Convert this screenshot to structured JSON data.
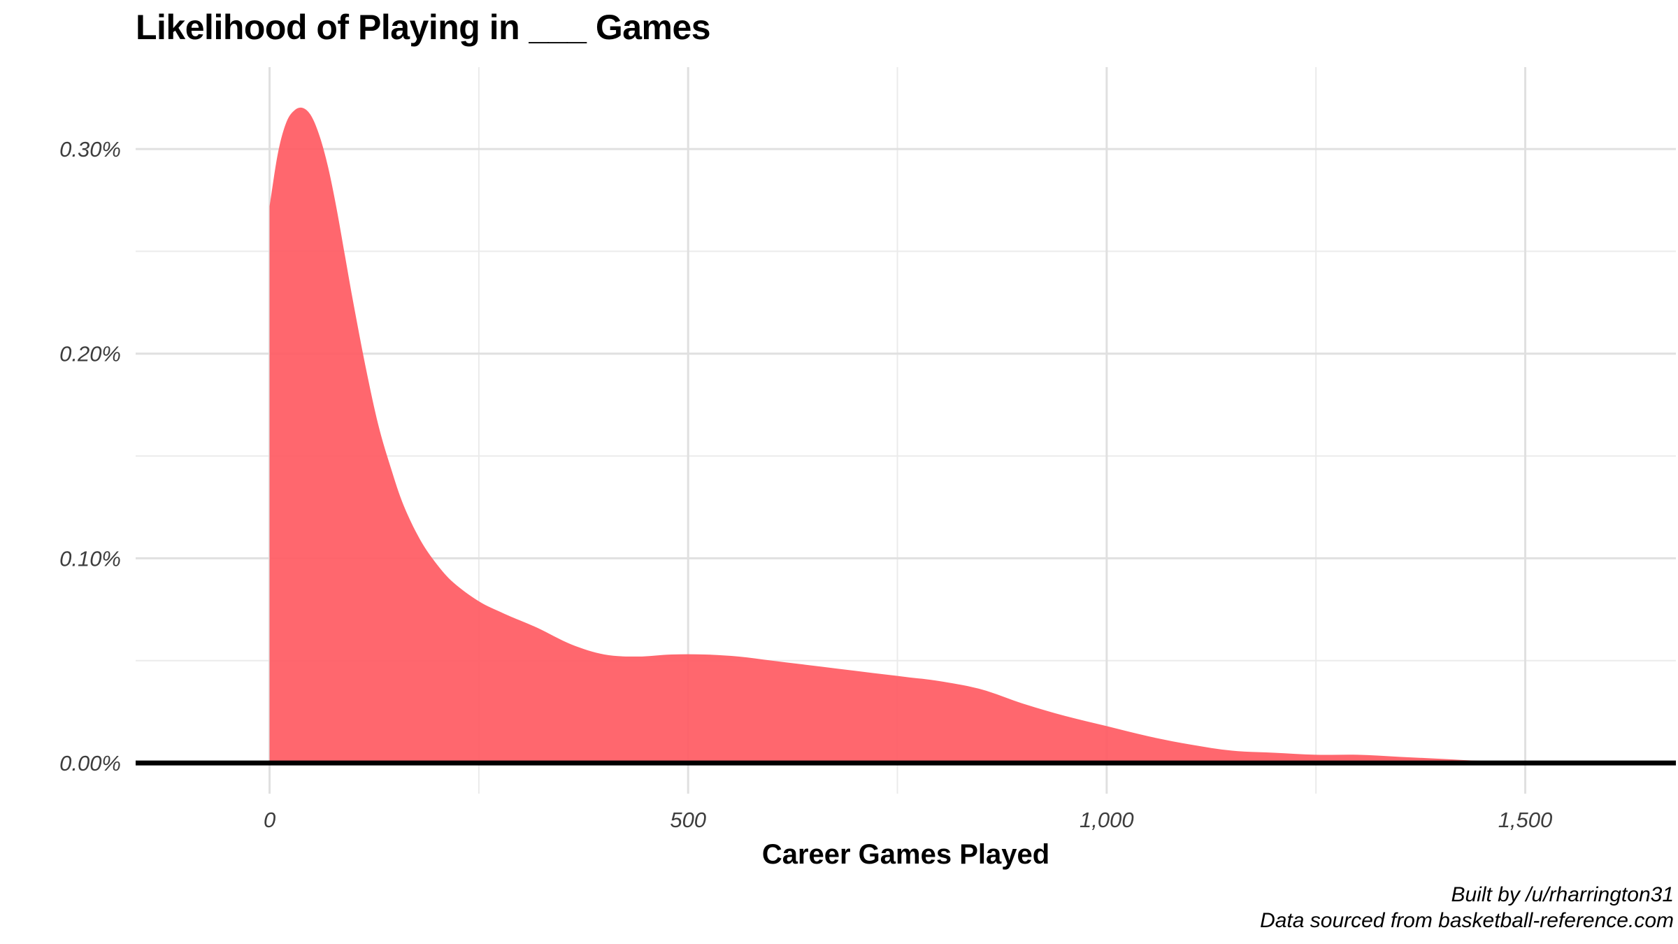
{
  "chart_data": {
    "type": "area",
    "title": "Likelihood of Playing in ___ Games",
    "xlabel": "Career Games Played",
    "ylabel": "",
    "xlim": [
      -160,
      1680
    ],
    "ylim": [
      -0.00015,
      0.0034
    ],
    "x_ticks": [
      0,
      500,
      1000,
      1500
    ],
    "x_tick_labels": [
      "0",
      "500",
      "1,000",
      "1,500"
    ],
    "x_minor_ticks": [
      250,
      750,
      1250
    ],
    "y_ticks": [
      0.0,
      0.001,
      0.002,
      0.003
    ],
    "y_tick_labels": [
      "0.00%",
      "0.10%",
      "0.20%",
      "0.30%"
    ],
    "y_minor_ticks": [
      0.0005,
      0.0015,
      0.0025
    ],
    "grid": true,
    "fill_color": "#ff5a62",
    "fill_opacity": 0.92,
    "x": [
      0,
      10,
      20,
      30,
      40,
      50,
      60,
      70,
      80,
      90,
      100,
      115,
      130,
      145,
      160,
      180,
      200,
      220,
      250,
      280,
      320,
      360,
      400,
      440,
      480,
      520,
      560,
      600,
      640,
      680,
      720,
      760,
      800,
      850,
      900,
      950,
      1000,
      1050,
      1100,
      1150,
      1200,
      1250,
      1300,
      1350,
      1400,
      1450,
      1500,
      1550,
      1600,
      1610
    ],
    "y": [
      0.00272,
      0.00298,
      0.00313,
      0.00319,
      0.0032,
      0.00316,
      0.00306,
      0.00291,
      0.00271,
      0.00248,
      0.00225,
      0.00193,
      0.00165,
      0.00144,
      0.00126,
      0.00109,
      0.00097,
      0.00088,
      0.00079,
      0.00073,
      0.00066,
      0.00058,
      0.00053,
      0.00052,
      0.00053,
      0.00053,
      0.00052,
      0.0005,
      0.00048,
      0.00046,
      0.00044,
      0.00042,
      0.0004,
      0.00036,
      0.00029,
      0.00023,
      0.00018,
      0.00013,
      9e-05,
      6e-05,
      5e-05,
      4e-05,
      4e-05,
      3e-05,
      2e-05,
      1e-05,
      1e-05,
      8e-06,
      4e-06,
      3e-06
    ]
  },
  "caption": {
    "line1": "Built by /u/rharrington31",
    "line2": "Data sourced from basketball-reference.com"
  }
}
